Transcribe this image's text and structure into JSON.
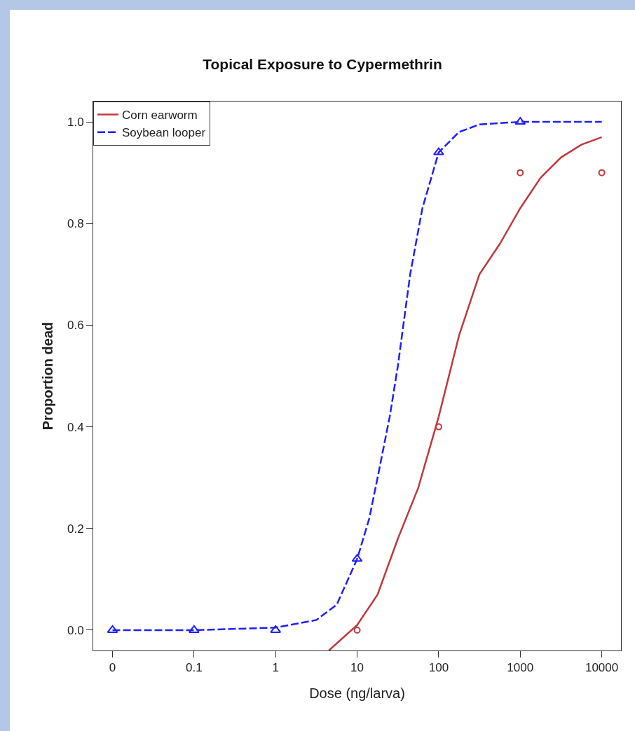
{
  "chart_data": {
    "type": "line",
    "title": "Topical Exposure to Cypermethrin",
    "xlabel": "Dose (ng/larva)",
    "ylabel": "Proportion dead",
    "log": "x",
    "legend": "top left",
    "xlim": [
      0.0058,
      17200
    ],
    "ylim": [
      -0.04,
      1.04
    ],
    "xticks": [
      {
        "value": 0.01,
        "label": "0"
      },
      0.1,
      1,
      10,
      100,
      1000,
      10000
    ],
    "yticks": [
      {
        "value": 0,
        "label": "0.0"
      },
      {
        "value": 0.2,
        "label": "0.2"
      },
      {
        "value": 0.4,
        "label": "0.4"
      },
      {
        "value": 0.6,
        "label": "0.6"
      },
      {
        "value": 0.8,
        "label": "0.8"
      },
      {
        "value": 1,
        "label": "1.0"
      }
    ],
    "series": [
      {
        "type": "line",
        "name": "Corn earworm",
        "color": "#c0393b",
        "line_style": "solid",
        "marker": "none",
        "x": [
          4.5,
          10,
          17.8,
          31.6,
          56.2,
          100,
          178,
          316,
          562,
          1000,
          1778,
          3162,
          5623,
          10000
        ],
        "values": [
          -0.04,
          0.01,
          0.07,
          0.18,
          0.28,
          0.42,
          0.58,
          0.7,
          0.76,
          0.83,
          0.89,
          0.93,
          0.955,
          0.97
        ]
      },
      {
        "type": "line",
        "name": "Soybean looper",
        "color": "#1f1fff",
        "line_style": "dashed",
        "marker": "none",
        "x": [
          0.01,
          0.1,
          1,
          3.16,
          5.62,
          10,
          14.1,
          17.8,
          25.1,
          31.6,
          44.7,
          63.1,
          100,
          178,
          316,
          1000,
          10000
        ],
        "values": [
          0,
          0,
          0.005,
          0.02,
          0.05,
          0.14,
          0.22,
          0.3,
          0.42,
          0.52,
          0.7,
          0.83,
          0.94,
          0.98,
          0.995,
          1,
          1
        ]
      },
      {
        "type": "scatter",
        "color": "#c0393b",
        "marker": "circle",
        "x": [
          10,
          100,
          1000,
          10000
        ],
        "values": [
          0,
          0.4,
          0.9,
          0.9
        ]
      },
      {
        "type": "scatter",
        "color": "#1f1fff",
        "marker": "triangle",
        "x": [
          0.01,
          0.1,
          1,
          10,
          100,
          1000
        ],
        "values": [
          0,
          0,
          0,
          0.14,
          0.94,
          1
        ]
      }
    ]
  }
}
